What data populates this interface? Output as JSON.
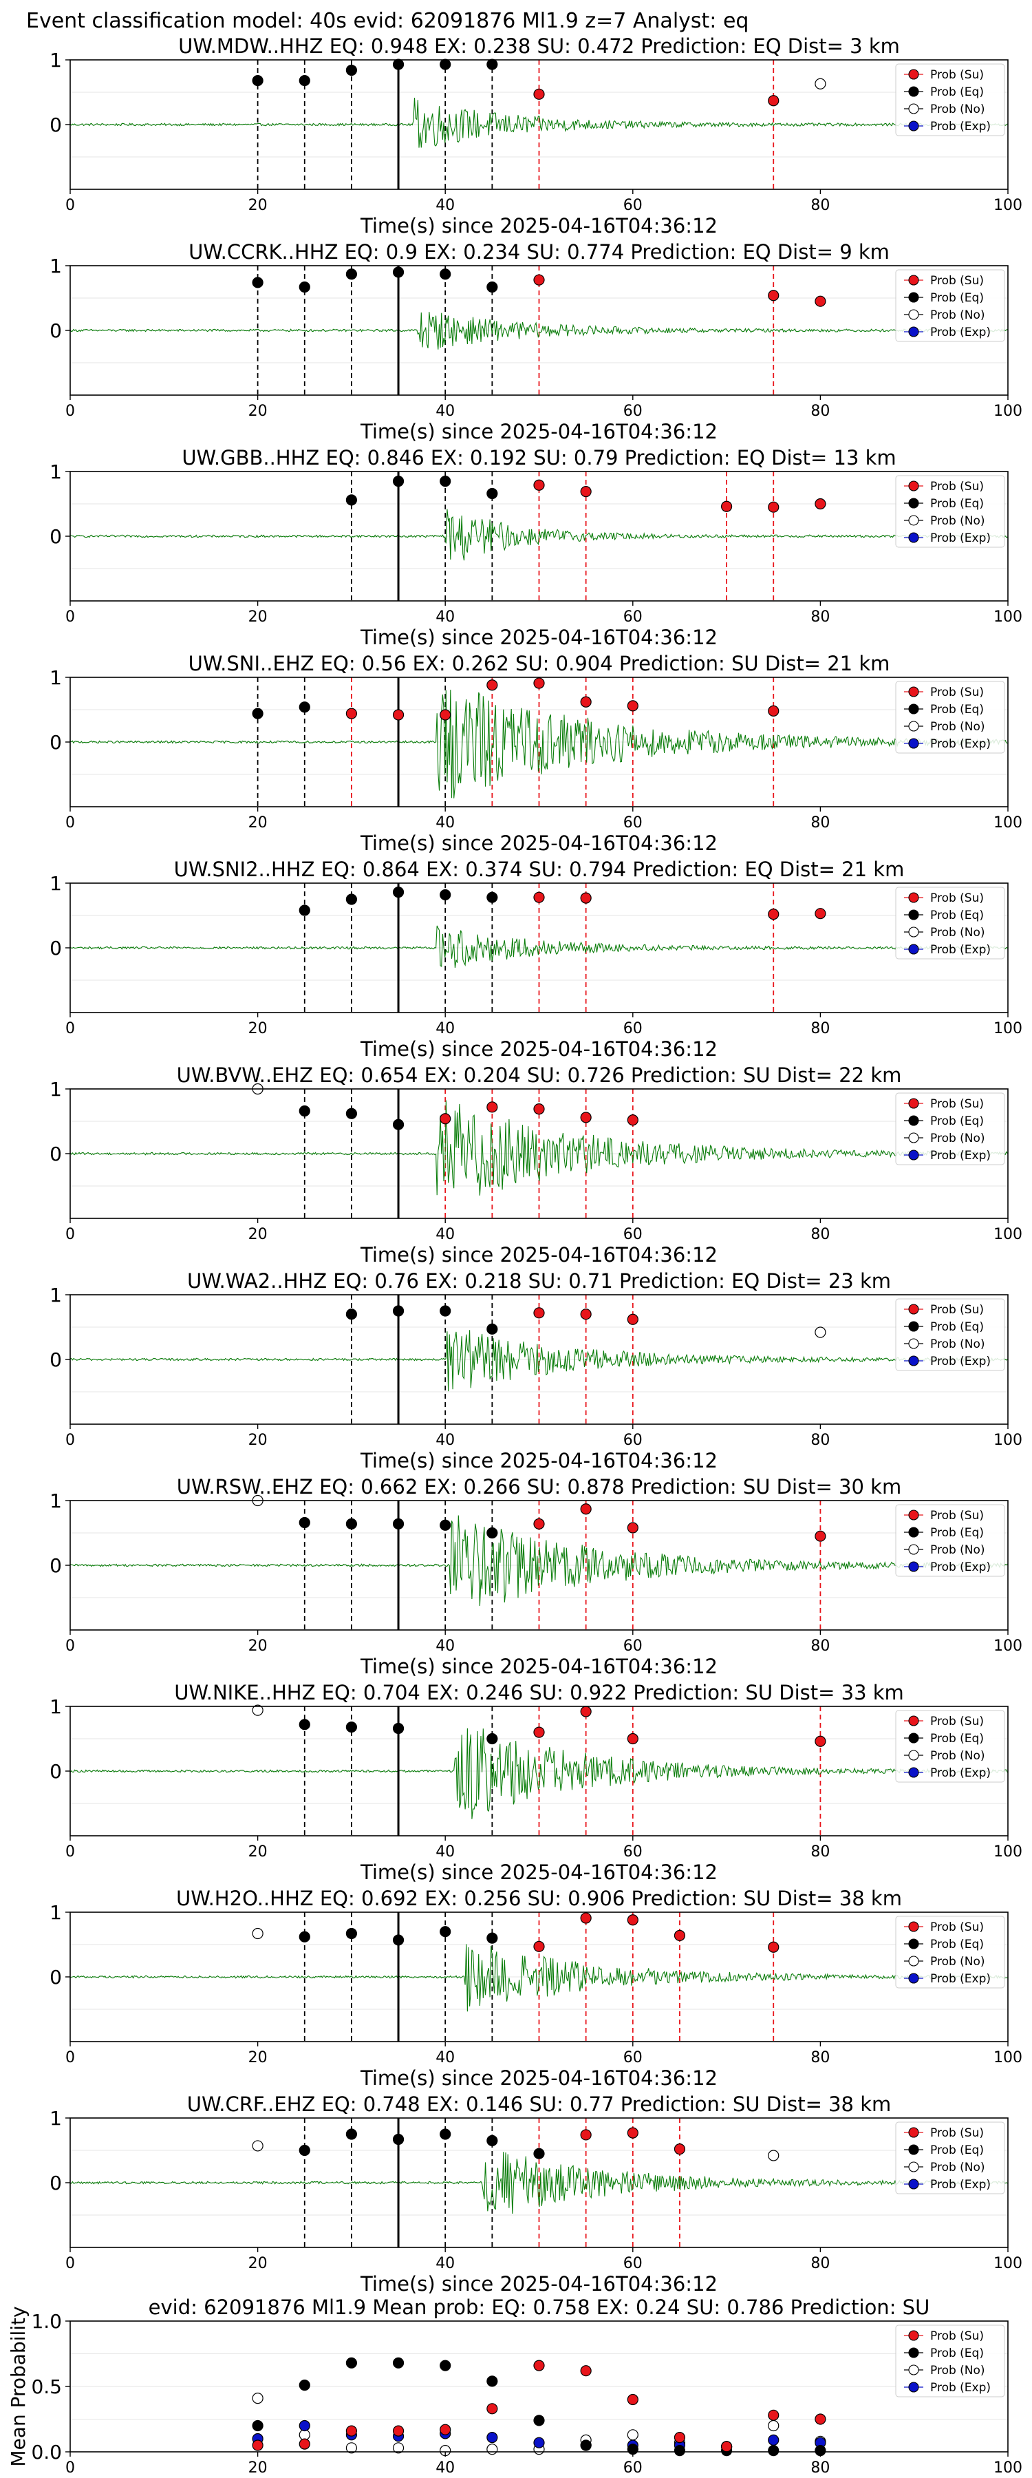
{
  "figure": {
    "suptitle": "Event classification model: 40s evid: 62091876 Ml1.9 z=7 Analyst: eq",
    "xlabel": "Time(s) since 2025-04-16T04:36:12",
    "legend_labels": [
      "Prob (Su)",
      "Prob (Eq)",
      "Prob (No)",
      "Prob (Exp)"
    ],
    "colors": {
      "su": "#e8151b",
      "eq": "#000000",
      "no": "#ffffff",
      "exp": "#0a12c9",
      "waveform": "#0a7d0a",
      "su_line": "#e8151b",
      "eq_line": "#000000"
    }
  },
  "chart_data": [
    {
      "type": "scatter",
      "title": "UW.MDW..HHZ   EQ: 0.948  EX: 0.238  SU: 0.472   Prediction: EQ    Dist= 3 km",
      "xlim": [
        0,
        100
      ],
      "ylim": [
        -1,
        1
      ],
      "x_ticks": [
        "0",
        "20",
        "40",
        "60",
        "80",
        "100"
      ],
      "y_ticks": [
        "1",
        "0"
      ],
      "waveform": {
        "onset": 36.5,
        "amplitude": 0.42,
        "decay": 10
      },
      "pick_line": 35,
      "eq_lines": [
        20,
        25,
        30,
        35,
        40,
        45
      ],
      "su_lines": [
        50,
        75
      ],
      "points": {
        "eq": [
          [
            20,
            0.68
          ],
          [
            25,
            0.68
          ],
          [
            30,
            0.84
          ],
          [
            35,
            0.93
          ],
          [
            40,
            0.93
          ],
          [
            45,
            0.93
          ]
        ],
        "su": [
          [
            50,
            0.47
          ],
          [
            75,
            0.37
          ]
        ],
        "no": [
          [
            80,
            0.63
          ]
        ],
        "exp": []
      }
    },
    {
      "type": "scatter",
      "title": "UW.CCRK..HHZ   EQ: 0.9  EX: 0.234  SU: 0.774   Prediction: EQ    Dist= 9 km",
      "xlim": [
        0,
        100
      ],
      "ylim": [
        -1,
        1
      ],
      "x_ticks": [
        "0",
        "20",
        "40",
        "60",
        "80",
        "100"
      ],
      "y_ticks": [
        "1",
        "0"
      ],
      "waveform": {
        "onset": 37,
        "amplitude": 0.35,
        "decay": 10
      },
      "pick_line": 35,
      "eq_lines": [
        20,
        25,
        30,
        35,
        40,
        45
      ],
      "su_lines": [
        50,
        75
      ],
      "points": {
        "eq": [
          [
            20,
            0.74
          ],
          [
            25,
            0.67
          ],
          [
            30,
            0.87
          ],
          [
            35,
            0.9
          ],
          [
            40,
            0.87
          ],
          [
            45,
            0.67
          ]
        ],
        "su": [
          [
            50,
            0.78
          ],
          [
            75,
            0.54
          ],
          [
            80,
            0.45
          ]
        ],
        "no": [],
        "exp": []
      }
    },
    {
      "type": "scatter",
      "title": "UW.GBB..HHZ   EQ: 0.846  EX: 0.192  SU: 0.79   Prediction: EQ    Dist= 13 km",
      "xlim": [
        0,
        100
      ],
      "ylim": [
        -1,
        1
      ],
      "x_ticks": [
        "0",
        "20",
        "40",
        "60",
        "80",
        "100"
      ],
      "y_ticks": [
        "1",
        "0"
      ],
      "waveform": {
        "onset": 40,
        "amplitude": 0.48,
        "decay": 7
      },
      "pick_line": 35,
      "eq_lines": [
        30,
        35,
        40,
        45
      ],
      "su_lines": [
        50,
        55,
        70,
        75
      ],
      "points": {
        "eq": [
          [
            30,
            0.56
          ],
          [
            35,
            0.85
          ],
          [
            40,
            0.85
          ],
          [
            45,
            0.66
          ]
        ],
        "su": [
          [
            50,
            0.79
          ],
          [
            55,
            0.69
          ],
          [
            70,
            0.46
          ],
          [
            75,
            0.45
          ],
          [
            80,
            0.5
          ]
        ],
        "no": [],
        "exp": []
      }
    },
    {
      "type": "scatter",
      "title": "UW.SNI..EHZ   EQ: 0.56  EX: 0.262  SU: 0.904   Prediction: SU    Dist= 21 km",
      "xlim": [
        0,
        100
      ],
      "ylim": [
        -1,
        1
      ],
      "x_ticks": [
        "0",
        "20",
        "40",
        "60",
        "80",
        "100"
      ],
      "y_ticks": [
        "1",
        "0"
      ],
      "waveform": {
        "onset": 39,
        "amplitude": 1.0,
        "decay": 16
      },
      "pick_line": 35,
      "eq_lines": [
        20,
        25,
        40
      ],
      "su_lines": [
        30,
        35,
        45,
        50,
        55,
        60,
        75
      ],
      "points": {
        "eq": [
          [
            20,
            0.44
          ],
          [
            25,
            0.54
          ]
        ],
        "su": [
          [
            30,
            0.44
          ],
          [
            35,
            0.42
          ],
          [
            40,
            0.42
          ],
          [
            45,
            0.88
          ],
          [
            50,
            0.91
          ],
          [
            55,
            0.62
          ],
          [
            60,
            0.56
          ],
          [
            75,
            0.48
          ]
        ],
        "no": [],
        "exp": []
      }
    },
    {
      "type": "scatter",
      "title": "UW.SNI2..HHZ   EQ: 0.864  EX: 0.374  SU: 0.794   Prediction: EQ    Dist= 21 km",
      "xlim": [
        0,
        100
      ],
      "ylim": [
        -1,
        1
      ],
      "x_ticks": [
        "0",
        "20",
        "40",
        "60",
        "80",
        "100"
      ],
      "y_ticks": [
        "1",
        "0"
      ],
      "waveform": {
        "onset": 39,
        "amplitude": 0.38,
        "decay": 9
      },
      "pick_line": 35,
      "eq_lines": [
        25,
        30,
        35,
        40,
        45
      ],
      "su_lines": [
        50,
        55,
        75
      ],
      "points": {
        "eq": [
          [
            25,
            0.58
          ],
          [
            30,
            0.75
          ],
          [
            35,
            0.86
          ],
          [
            40,
            0.82
          ],
          [
            45,
            0.78
          ]
        ],
        "su": [
          [
            50,
            0.78
          ],
          [
            55,
            0.77
          ],
          [
            75,
            0.52
          ],
          [
            80,
            0.53
          ]
        ],
        "no": [],
        "exp": []
      }
    },
    {
      "type": "scatter",
      "title": "UW.BVW..EHZ   EQ: 0.654  EX: 0.204  SU: 0.726   Prediction: SU    Dist= 22 km",
      "xlim": [
        0,
        100
      ],
      "ylim": [
        -1,
        1
      ],
      "x_ticks": [
        "0",
        "20",
        "40",
        "60",
        "80",
        "100"
      ],
      "y_ticks": [
        "1",
        "0"
      ],
      "waveform": {
        "onset": 39,
        "amplitude": 0.9,
        "decay": 14
      },
      "pick_line": 35,
      "eq_lines": [
        25,
        30,
        35
      ],
      "su_lines": [
        40,
        45,
        50,
        55,
        60
      ],
      "points": {
        "eq": [
          [
            25,
            0.66
          ],
          [
            30,
            0.62
          ],
          [
            35,
            0.45
          ]
        ],
        "su": [
          [
            40,
            0.54
          ],
          [
            45,
            0.72
          ],
          [
            50,
            0.69
          ],
          [
            55,
            0.56
          ],
          [
            60,
            0.52
          ]
        ],
        "no": [
          [
            20,
            1.0
          ]
        ],
        "exp": []
      }
    },
    {
      "type": "scatter",
      "title": "UW.WA2..HHZ   EQ: 0.76  EX: 0.218  SU: 0.71   Prediction: EQ    Dist= 23 km",
      "xlim": [
        0,
        100
      ],
      "ylim": [
        -1,
        1
      ],
      "x_ticks": [
        "0",
        "20",
        "40",
        "60",
        "80",
        "100"
      ],
      "y_ticks": [
        "1",
        "0"
      ],
      "waveform": {
        "onset": 40,
        "amplitude": 0.55,
        "decay": 12
      },
      "pick_line": 35,
      "eq_lines": [
        30,
        35,
        40,
        45
      ],
      "su_lines": [
        50,
        55,
        60
      ],
      "points": {
        "eq": [
          [
            30,
            0.7
          ],
          [
            35,
            0.75
          ],
          [
            40,
            0.75
          ],
          [
            45,
            0.47
          ]
        ],
        "su": [
          [
            50,
            0.72
          ],
          [
            55,
            0.7
          ],
          [
            60,
            0.62
          ]
        ],
        "no": [
          [
            80,
            0.42
          ]
        ],
        "exp": []
      }
    },
    {
      "type": "scatter",
      "title": "UW.RSW..EHZ   EQ: 0.662  EX: 0.266  SU: 0.878   Prediction: SU    Dist= 30 km",
      "xlim": [
        0,
        100
      ],
      "ylim": [
        -1,
        1
      ],
      "x_ticks": [
        "0",
        "20",
        "40",
        "60",
        "80",
        "100"
      ],
      "y_ticks": [
        "1",
        "0"
      ],
      "waveform": {
        "onset": 40.5,
        "amplitude": 0.85,
        "decay": 14
      },
      "pick_line": 35,
      "eq_lines": [
        25,
        30,
        35,
        40,
        45
      ],
      "su_lines": [
        50,
        55,
        60,
        80
      ],
      "points": {
        "eq": [
          [
            25,
            0.66
          ],
          [
            30,
            0.64
          ],
          [
            35,
            0.64
          ],
          [
            40,
            0.62
          ],
          [
            45,
            0.5
          ]
        ],
        "su": [
          [
            50,
            0.64
          ],
          [
            55,
            0.87
          ],
          [
            60,
            0.58
          ],
          [
            80,
            0.45
          ]
        ],
        "no": [
          [
            20,
            1.0
          ]
        ],
        "exp": []
      }
    },
    {
      "type": "scatter",
      "title": "UW.NIKE..HHZ   EQ: 0.704  EX: 0.246  SU: 0.922   Prediction: SU    Dist= 33 km",
      "xlim": [
        0,
        100
      ],
      "ylim": [
        -1,
        1
      ],
      "x_ticks": [
        "0",
        "20",
        "40",
        "60",
        "80",
        "100"
      ],
      "y_ticks": [
        "1",
        "0"
      ],
      "waveform": {
        "onset": 41,
        "amplitude": 0.85,
        "decay": 12
      },
      "pick_line": 35,
      "eq_lines": [
        25,
        30,
        35,
        45
      ],
      "su_lines": [
        50,
        55,
        60,
        80
      ],
      "points": {
        "eq": [
          [
            25,
            0.72
          ],
          [
            30,
            0.68
          ],
          [
            35,
            0.66
          ],
          [
            45,
            0.5
          ]
        ],
        "su": [
          [
            50,
            0.6
          ],
          [
            55,
            0.92
          ],
          [
            60,
            0.5
          ],
          [
            80,
            0.46
          ]
        ],
        "no": [
          [
            20,
            0.94
          ]
        ],
        "exp": []
      }
    },
    {
      "type": "scatter",
      "title": "UW.H2O..HHZ   EQ: 0.692  EX: 0.256  SU: 0.906   Prediction: SU    Dist= 38 km",
      "xlim": [
        0,
        100
      ],
      "ylim": [
        -1,
        1
      ],
      "x_ticks": [
        "0",
        "20",
        "40",
        "60",
        "80",
        "100"
      ],
      "y_ticks": [
        "1",
        "0"
      ],
      "waveform": {
        "onset": 42,
        "amplitude": 0.6,
        "decay": 12
      },
      "pick_line": 35,
      "eq_lines": [
        25,
        30,
        35,
        40,
        45
      ],
      "su_lines": [
        50,
        55,
        60,
        65,
        75
      ],
      "points": {
        "eq": [
          [
            25,
            0.62
          ],
          [
            30,
            0.67
          ],
          [
            35,
            0.57
          ],
          [
            40,
            0.7
          ],
          [
            45,
            0.6
          ]
        ],
        "su": [
          [
            50,
            0.47
          ],
          [
            55,
            0.91
          ],
          [
            60,
            0.88
          ],
          [
            65,
            0.64
          ],
          [
            75,
            0.46
          ]
        ],
        "no": [
          [
            20,
            0.67
          ]
        ],
        "exp": []
      }
    },
    {
      "type": "scatter",
      "title": "UW.CRF..EHZ   EQ: 0.748  EX: 0.146  SU: 0.77   Prediction: SU    Dist= 38 km",
      "xlim": [
        0,
        100
      ],
      "ylim": [
        -1,
        1
      ],
      "x_ticks": [
        "0",
        "20",
        "40",
        "60",
        "80",
        "100"
      ],
      "y_ticks": [
        "1",
        "0"
      ],
      "waveform": {
        "onset": 44,
        "amplitude": 0.6,
        "decay": 12
      },
      "pick_line": 35,
      "eq_lines": [
        25,
        30,
        35,
        40,
        45
      ],
      "su_lines": [
        50,
        55,
        60,
        65
      ],
      "points": {
        "eq": [
          [
            25,
            0.5
          ],
          [
            30,
            0.75
          ],
          [
            35,
            0.67
          ],
          [
            40,
            0.75
          ],
          [
            45,
            0.65
          ],
          [
            50,
            0.45
          ]
        ],
        "su": [
          [
            55,
            0.74
          ],
          [
            60,
            0.77
          ],
          [
            65,
            0.52
          ]
        ],
        "no": [
          [
            20,
            0.57
          ],
          [
            75,
            0.42
          ]
        ],
        "exp": []
      }
    },
    {
      "type": "scatter",
      "title": "evid: 62091876  Ml1.9   Mean prob:   EQ: 0.758  EX: 0.24  SU: 0.786   Prediction: SU",
      "ylabel": "Mean Probability",
      "xlim": [
        0,
        100
      ],
      "ylim": [
        0,
        1
      ],
      "x_ticks": [
        "0",
        "20",
        "40",
        "60",
        "80",
        "100"
      ],
      "y_ticks": [
        "1.0",
        "0.5",
        "0.0"
      ],
      "points": {
        "su": [
          [
            20,
            0.05
          ],
          [
            25,
            0.06
          ],
          [
            30,
            0.16
          ],
          [
            35,
            0.16
          ],
          [
            40,
            0.17
          ],
          [
            45,
            0.33
          ],
          [
            50,
            0.66
          ],
          [
            55,
            0.62
          ],
          [
            60,
            0.4
          ],
          [
            65,
            0.11
          ],
          [
            70,
            0.04
          ],
          [
            75,
            0.28
          ],
          [
            80,
            0.25
          ]
        ],
        "eq": [
          [
            20,
            0.2
          ],
          [
            25,
            0.51
          ],
          [
            30,
            0.68
          ],
          [
            35,
            0.68
          ],
          [
            40,
            0.66
          ],
          [
            45,
            0.54
          ],
          [
            50,
            0.24
          ],
          [
            55,
            0.05
          ],
          [
            60,
            0.02
          ],
          [
            65,
            0.01
          ],
          [
            70,
            0.01
          ],
          [
            75,
            0.01
          ],
          [
            80,
            0.01
          ]
        ],
        "no": [
          [
            20,
            0.41
          ],
          [
            25,
            0.13
          ],
          [
            30,
            0.03
          ],
          [
            35,
            0.03
          ],
          [
            40,
            0.01
          ],
          [
            45,
            0.02
          ],
          [
            50,
            0.02
          ],
          [
            55,
            0.09
          ],
          [
            60,
            0.13
          ],
          [
            65,
            0.07
          ],
          [
            70,
            0.04
          ],
          [
            75,
            0.2
          ],
          [
            80,
            0.08
          ]
        ],
        "exp": [
          [
            20,
            0.1
          ],
          [
            25,
            0.2
          ],
          [
            30,
            0.13
          ],
          [
            35,
            0.12
          ],
          [
            40,
            0.14
          ],
          [
            45,
            0.11
          ],
          [
            50,
            0.07
          ],
          [
            55,
            0.05
          ],
          [
            60,
            0.05
          ],
          [
            65,
            0.05
          ],
          [
            70,
            0.04
          ],
          [
            75,
            0.09
          ],
          [
            80,
            0.07
          ]
        ]
      }
    }
  ]
}
